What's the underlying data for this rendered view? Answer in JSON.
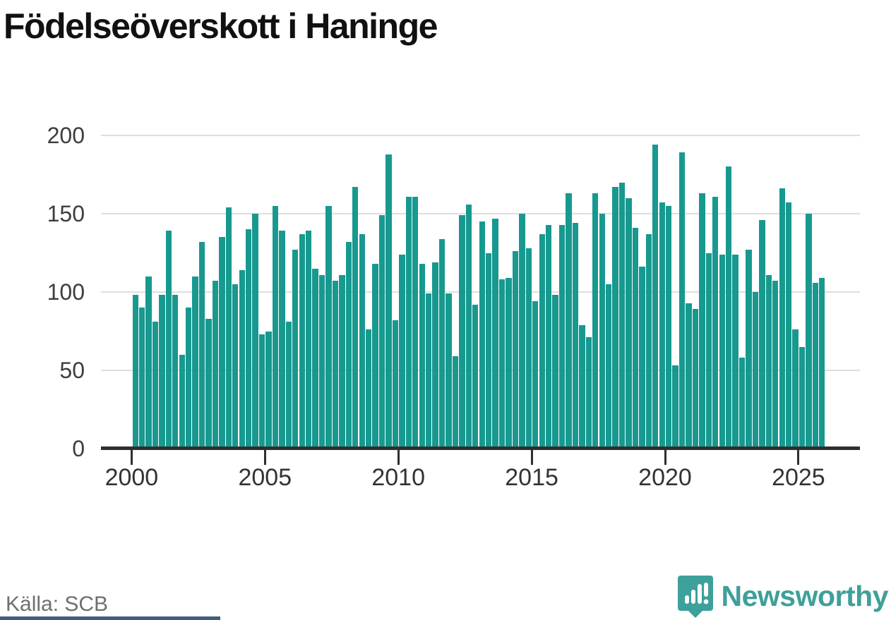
{
  "title": "Födelseöverskott i Haninge",
  "source": "Källa: SCB",
  "brand": {
    "name": "Newsworthy",
    "logo_icon": "newsworthy-pin-barchart-icon"
  },
  "colors": {
    "bar": "#17998f",
    "axis": "#2f2f2f",
    "grid": "#dedede",
    "title_text": "#111111",
    "x_label_text": "#333333",
    "y_label_text": "#3d3d3d",
    "source_text": "#6f6f6f",
    "brand_teal": "#3ea09a",
    "footer_strip": "#435c7d"
  },
  "chart_data": {
    "type": "bar",
    "title": "Födelseöverskott i Haninge",
    "frequency": "quarterly",
    "x_start": "2000 Q1",
    "x_end": "2025 Q4",
    "x_tick_labels": [
      "2000",
      "2005",
      "2010",
      "2015",
      "2020",
      "2025"
    ],
    "x_tick_years": [
      2000,
      2005,
      2010,
      2015,
      2020,
      2025
    ],
    "y_ticks": [
      0,
      50,
      100,
      150,
      200
    ],
    "ylim": [
      0,
      200
    ],
    "grid": "horizontal",
    "legend": "none",
    "series": [
      {
        "name": "Födelseöverskott",
        "values": [
          98,
          90,
          110,
          81,
          98,
          139,
          98,
          60,
          90,
          110,
          132,
          83,
          107,
          135,
          154,
          105,
          114,
          140,
          150,
          73,
          75,
          155,
          139,
          81,
          127,
          137,
          139,
          115,
          111,
          155,
          107,
          111,
          132,
          167,
          137,
          76,
          118,
          149,
          188,
          82,
          124,
          161,
          161,
          118,
          99,
          119,
          134,
          99,
          59,
          149,
          156,
          92,
          145,
          125,
          147,
          108,
          109,
          126,
          150,
          128,
          94,
          137,
          143,
          98,
          143,
          163,
          144,
          79,
          71,
          163,
          150,
          105,
          167,
          170,
          160,
          141,
          116,
          137,
          194,
          157,
          155,
          53,
          189,
          93,
          89,
          163,
          125,
          161,
          124,
          180,
          124,
          58,
          127,
          100,
          146,
          111,
          107,
          166,
          157,
          76,
          65,
          150,
          106,
          109
        ]
      }
    ]
  }
}
